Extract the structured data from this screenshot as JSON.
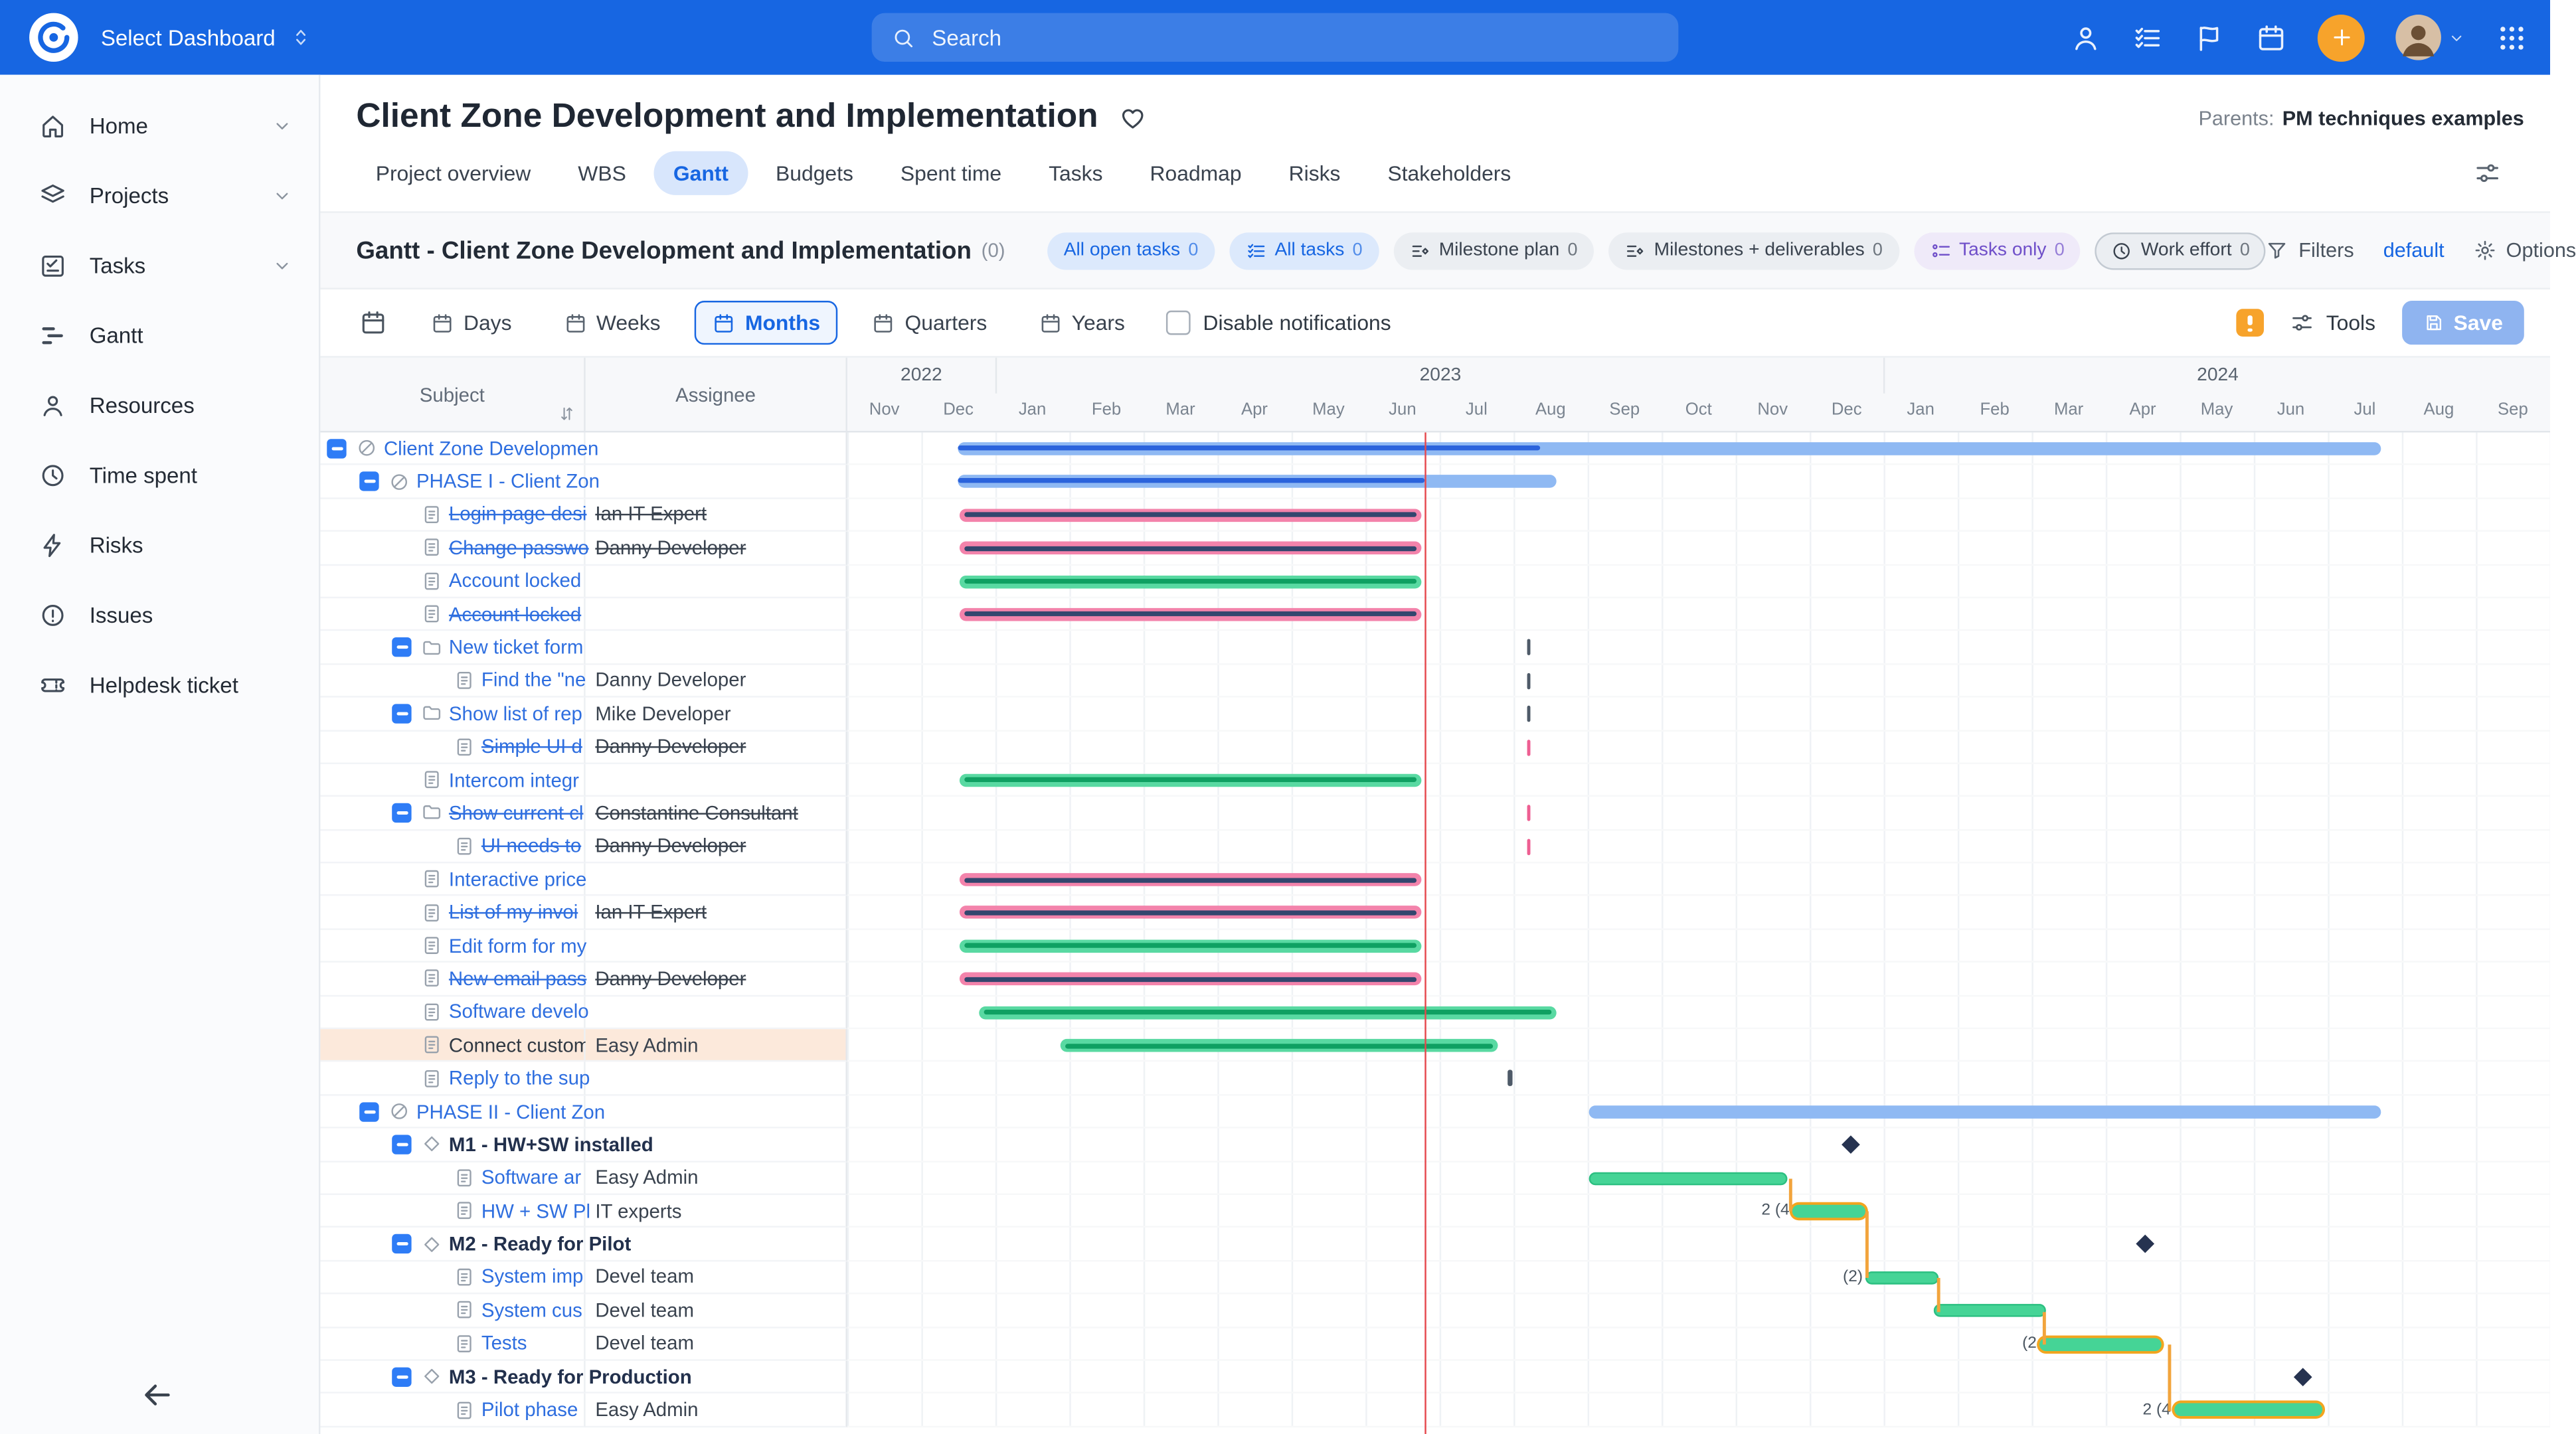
{
  "navbar": {
    "select_dashboard": "Select Dashboard",
    "search_placeholder": "Search"
  },
  "sidebar": {
    "items": [
      {
        "label": "Home",
        "icon": "home-icon",
        "chevron": true
      },
      {
        "label": "Projects",
        "icon": "projects-icon",
        "chevron": true
      },
      {
        "label": "Tasks",
        "icon": "tasks-icon",
        "chevron": true
      },
      {
        "label": "Gantt",
        "icon": "gantt-icon"
      },
      {
        "label": "Resources",
        "icon": "resources-icon"
      },
      {
        "label": "Time spent",
        "icon": "clock-icon"
      },
      {
        "label": "Risks",
        "icon": "risks-icon"
      },
      {
        "label": "Issues",
        "icon": "issues-icon"
      },
      {
        "label": "Helpdesk ticket",
        "icon": "helpdesk-icon"
      }
    ]
  },
  "header": {
    "title": "Client Zone Development and Implementation",
    "parents_label": "Parents:",
    "parents_value": "PM techniques examples",
    "tabs": [
      {
        "label": "Project overview"
      },
      {
        "label": "WBS"
      },
      {
        "label": "Gantt",
        "active": true
      },
      {
        "label": "Budgets"
      },
      {
        "label": "Spent time"
      },
      {
        "label": "Tasks"
      },
      {
        "label": "Roadmap"
      },
      {
        "label": "Risks"
      },
      {
        "label": "Stakeholders"
      }
    ]
  },
  "gantt_header": {
    "title": "Gantt - Client Zone Development and Implementation",
    "count": "(0)",
    "chips": [
      {
        "label": "All open tasks",
        "count": "0",
        "style": "blue",
        "icon": null
      },
      {
        "label": "All tasks",
        "count": "0",
        "style": "blue",
        "icon": "list-check-icon"
      },
      {
        "label": "Milestone plan",
        "count": "0",
        "style": "gray",
        "icon": "milestone-lines-icon"
      },
      {
        "label": "Milestones + deliverables",
        "count": "0",
        "style": "gray",
        "icon": "milestone-lines-icon"
      },
      {
        "label": "Tasks only",
        "count": "0",
        "style": "purple",
        "icon": "list-circles-icon"
      },
      {
        "label": "Work effort",
        "count": "0",
        "style": "outline",
        "icon": "clock-icon"
      }
    ],
    "filters_label": "Filters",
    "default_label": "default",
    "options_label": "Options"
  },
  "toolbar": {
    "views": [
      {
        "label": "Days"
      },
      {
        "label": "Weeks"
      },
      {
        "label": "Months",
        "active": true
      },
      {
        "label": "Quarters"
      },
      {
        "label": "Years"
      }
    ],
    "disable_notifications_label": "Disable notifications",
    "tools_label": "Tools",
    "save_label": "Save"
  },
  "table": {
    "columns": [
      "Subject",
      "Assignee"
    ]
  },
  "timeline": {
    "years": [
      {
        "label": "2022",
        "months": 2
      },
      {
        "label": "2023",
        "months": 12
      },
      {
        "label": "2024",
        "months": 9
      }
    ],
    "months": [
      "Nov",
      "Dec",
      "Jan",
      "Feb",
      "Mar",
      "Apr",
      "May",
      "Jun",
      "Jul",
      "Aug",
      "Sep",
      "Oct",
      "Nov",
      "Dec",
      "Jan",
      "Feb",
      "Mar",
      "Apr",
      "May",
      "Jun",
      "Jul",
      "Aug",
      "Sep"
    ],
    "today_month": 7.79
  },
  "rows": [
    {
      "subject": "Client Zone Developmen",
      "assignee": "",
      "level": 0,
      "icon": "project-icon",
      "collapse": true,
      "link": true,
      "bar": {
        "type": "project",
        "start": 1.5,
        "end": 20.71,
        "progress": 9.36
      }
    },
    {
      "subject": "PHASE I - Client Zon",
      "assignee": "",
      "level": 1,
      "icon": "project-icon",
      "collapse": true,
      "link": true,
      "bar": {
        "type": "project",
        "start": 1.5,
        "end": 9.57,
        "progress": 7.79
      }
    },
    {
      "subject": "Login page desi",
      "assignee": "Ian IT Expert",
      "level": 2,
      "icon": "doc-icon",
      "struck": true,
      "link": true,
      "bar": {
        "type": "pink",
        "start": 1.52,
        "end": 7.75
      }
    },
    {
      "subject": "Change passwo",
      "assignee": "Danny Developer",
      "level": 2,
      "icon": "doc-icon",
      "struck": true,
      "link": true,
      "bar": {
        "type": "pink",
        "start": 1.52,
        "end": 7.75
      }
    },
    {
      "subject": "Account locked",
      "assignee": "",
      "level": 2,
      "icon": "doc-icon",
      "link": true,
      "bar": {
        "type": "green",
        "start": 1.52,
        "end": 7.75
      }
    },
    {
      "subject": "Account locked",
      "assignee": "",
      "level": 2,
      "icon": "doc-icon",
      "struck": true,
      "link": true,
      "bar": {
        "type": "pink",
        "start": 1.52,
        "end": 7.75
      }
    },
    {
      "subject": "New ticket form",
      "assignee": "",
      "level": 2,
      "icon": "folder-icon",
      "collapse": true,
      "link": true,
      "tick": {
        "pos": 9.18,
        "color": "dark"
      }
    },
    {
      "subject": "Find the \"ne",
      "assignee": "Danny Developer",
      "level": 3,
      "icon": "doc-icon",
      "link": true,
      "tick": {
        "pos": 9.18,
        "color": "dark"
      }
    },
    {
      "subject": "Show list of rep",
      "assignee": "Mike Developer",
      "level": 2,
      "icon": "folder-icon",
      "collapse": true,
      "link": true,
      "tick": {
        "pos": 9.18,
        "color": "dark"
      }
    },
    {
      "subject": "Simple UI d",
      "assignee": "Danny Developer",
      "level": 3,
      "icon": "doc-icon",
      "struck": true,
      "link": true,
      "tick": {
        "pos": 9.18,
        "color": "pink"
      }
    },
    {
      "subject": "Intercom integr",
      "assignee": "",
      "level": 2,
      "icon": "doc-icon",
      "link": true,
      "bar": {
        "type": "green",
        "start": 1.52,
        "end": 7.75
      }
    },
    {
      "subject": "Show current cl",
      "assignee": "Constantine Consultant",
      "level": 2,
      "icon": "folder-icon",
      "collapse": true,
      "struck": true,
      "link": true,
      "tick": {
        "pos": 9.18,
        "color": "pink"
      }
    },
    {
      "subject": "UI needs to",
      "assignee": "Danny Developer",
      "level": 3,
      "icon": "doc-icon",
      "struck": true,
      "link": true,
      "tick": {
        "pos": 9.18,
        "color": "pink"
      }
    },
    {
      "subject": "Interactive price",
      "assignee": "",
      "level": 2,
      "icon": "doc-icon",
      "link": true,
      "bar": {
        "type": "pink",
        "start": 1.52,
        "end": 7.75
      }
    },
    {
      "subject": "List of my invoi",
      "assignee": "Ian IT Expert",
      "level": 2,
      "icon": "doc-icon",
      "struck": true,
      "link": true,
      "bar": {
        "type": "pink",
        "start": 1.52,
        "end": 7.75
      }
    },
    {
      "subject": "Edit form for my",
      "assignee": "",
      "level": 2,
      "icon": "doc-icon",
      "link": true,
      "bar": {
        "type": "green",
        "start": 1.52,
        "end": 7.75
      }
    },
    {
      "subject": "New email pass",
      "assignee": "Danny Developer",
      "level": 2,
      "icon": "doc-icon",
      "struck": true,
      "link": true,
      "bar": {
        "type": "pink",
        "start": 1.52,
        "end": 7.75
      }
    },
    {
      "subject": "Software develo",
      "assignee": "",
      "level": 2,
      "icon": "doc-icon",
      "link": true,
      "bar": {
        "type": "green",
        "start": 1.78,
        "end": 9.57
      }
    },
    {
      "subject": "Connect custom",
      "assignee": "Easy Admin",
      "level": 2,
      "icon": "doc-icon",
      "highlight": true,
      "bar": {
        "type": "green",
        "start": 2.88,
        "end": 8.78
      }
    },
    {
      "subject": "Reply to the sup",
      "assignee": "",
      "level": 2,
      "icon": "doc-icon",
      "link": true,
      "tick": {
        "pos": 8.92,
        "color": "dark"
      }
    },
    {
      "subject": "PHASE II - Client Zon",
      "assignee": "",
      "level": 1,
      "icon": "project-icon",
      "collapse": true,
      "link": true,
      "bar": {
        "type": "project",
        "start": 10.01,
        "end": 20.71
      }
    },
    {
      "subject": "M1 - HW+SW installed",
      "assignee": "",
      "level": 2,
      "icon": "milestone-icon",
      "collapse": true,
      "bold": true,
      "diamond": {
        "pos": 13.47
      }
    },
    {
      "subject": "Software ar",
      "assignee": "Easy Admin",
      "level": 3,
      "icon": "doc-icon",
      "link": true,
      "bar": {
        "type": "green2",
        "start": 10.01,
        "end": 12.7
      }
    },
    {
      "subject": "HW + SW Pl",
      "assignee": "IT experts",
      "level": 3,
      "icon": "doc-icon",
      "link": true,
      "bar": {
        "type": "crit",
        "start": 12.77,
        "end": 13.76
      },
      "label": {
        "text": "2 (4",
        "pos": 12.77
      }
    },
    {
      "subject": "M2 - Ready for Pilot",
      "assignee": "",
      "level": 2,
      "icon": "milestone-icon",
      "collapse": true,
      "bold": true,
      "diamond": {
        "pos": 17.45
      }
    },
    {
      "subject": "System imp",
      "assignee": "Devel team",
      "level": 3,
      "icon": "doc-icon",
      "link": true,
      "bar": {
        "type": "green2",
        "start": 13.76,
        "end": 14.75
      },
      "label": {
        "text": "(2)",
        "pos": 13.76
      }
    },
    {
      "subject": "System cus",
      "assignee": "Devel team",
      "level": 3,
      "icon": "doc-icon",
      "link": true,
      "bar": {
        "type": "green2",
        "start": 14.68,
        "end": 16.18
      }
    },
    {
      "subject": "Tests",
      "assignee": "Devel team",
      "level": 3,
      "icon": "doc-icon",
      "link": true,
      "bar": {
        "type": "crit",
        "start": 16.11,
        "end": 17.76
      },
      "label": {
        "text": "(2",
        "pos": 16.11
      }
    },
    {
      "subject": "M3 - Ready for Production",
      "assignee": "",
      "level": 2,
      "icon": "milestone-icon",
      "collapse": true,
      "bold": true,
      "diamond": {
        "pos": 19.57
      }
    },
    {
      "subject": "Pilot phase",
      "assignee": "Easy Admin",
      "level": 3,
      "icon": "doc-icon",
      "link": true,
      "bar": {
        "type": "crit",
        "start": 17.92,
        "end": 19.92
      },
      "label": {
        "text": "2 (4",
        "pos": 17.92
      }
    }
  ],
  "connectors": [
    {
      "x": 12.72,
      "from": 22,
      "to": 23
    },
    {
      "x": 13.76,
      "from": 23,
      "to": 25
    },
    {
      "x": 14.72,
      "from": 25,
      "to": 26
    },
    {
      "x": 16.14,
      "from": 26,
      "to": 27
    },
    {
      "x": 17.84,
      "from": 27,
      "to": 29
    }
  ],
  "colors": {
    "navbar": "#1766E2",
    "accent": "#1766E2",
    "plus": "#F7A32B",
    "bar_green": "#59D9A2",
    "bar_green_dark": "#0FA062",
    "bar_pink": "#F383AB",
    "bar_pink_dark": "#33466E",
    "bar_blue": "#8FB9F3",
    "bar_blue_dark": "#2B63DC",
    "critical": "#F2A51F",
    "today": "#E5484D",
    "highlight": "#FCE9DB"
  }
}
